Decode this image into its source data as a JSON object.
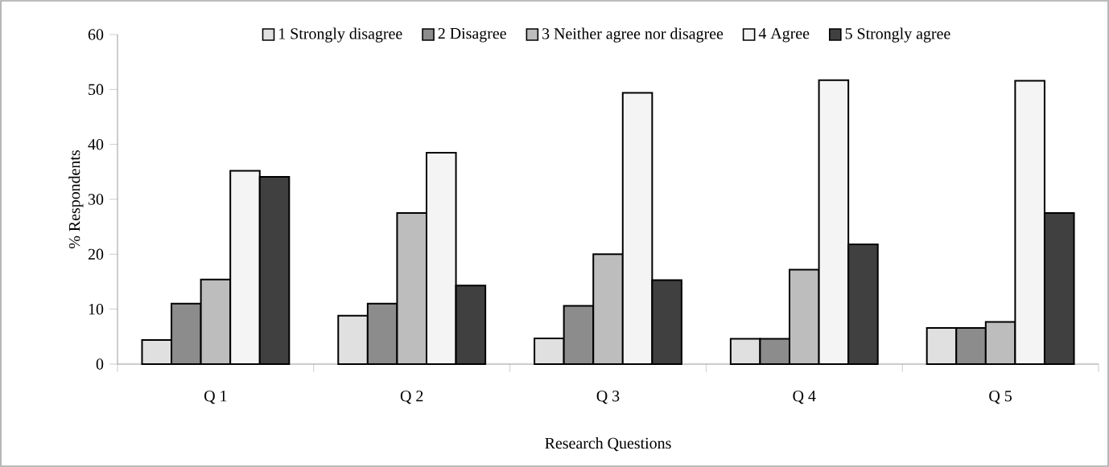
{
  "chart_data": {
    "type": "bar",
    "xlabel": "Research Questions",
    "ylabel": "% Respondents",
    "categories": [
      "Q 1",
      "Q 2",
      "Q 3",
      "Q 4",
      "Q 5"
    ],
    "series": [
      {
        "name": "1 Strongly disagree",
        "color": "#e0e0e0",
        "values": [
          4.4,
          8.8,
          4.7,
          4.6,
          6.6
        ]
      },
      {
        "name": "2 Disagree",
        "color": "#8c8c8c",
        "values": [
          11.0,
          11.0,
          10.6,
          4.6,
          6.6
        ]
      },
      {
        "name": "3 Neither agree nor disagree",
        "color": "#bdbdbd",
        "values": [
          15.4,
          27.5,
          20.0,
          17.2,
          7.7
        ]
      },
      {
        "name": "4 Agree",
        "color": "#f4f4f4",
        "values": [
          35.2,
          38.5,
          49.4,
          51.7,
          51.6
        ]
      },
      {
        "name": "5 Strongly agree",
        "color": "#404040",
        "values": [
          34.1,
          14.3,
          15.3,
          21.8,
          27.5
        ]
      }
    ],
    "ylim": [
      0,
      60
    ],
    "yticks": [
      0,
      10,
      20,
      30,
      40,
      50,
      60
    ],
    "grid": false,
    "legend": "top"
  }
}
